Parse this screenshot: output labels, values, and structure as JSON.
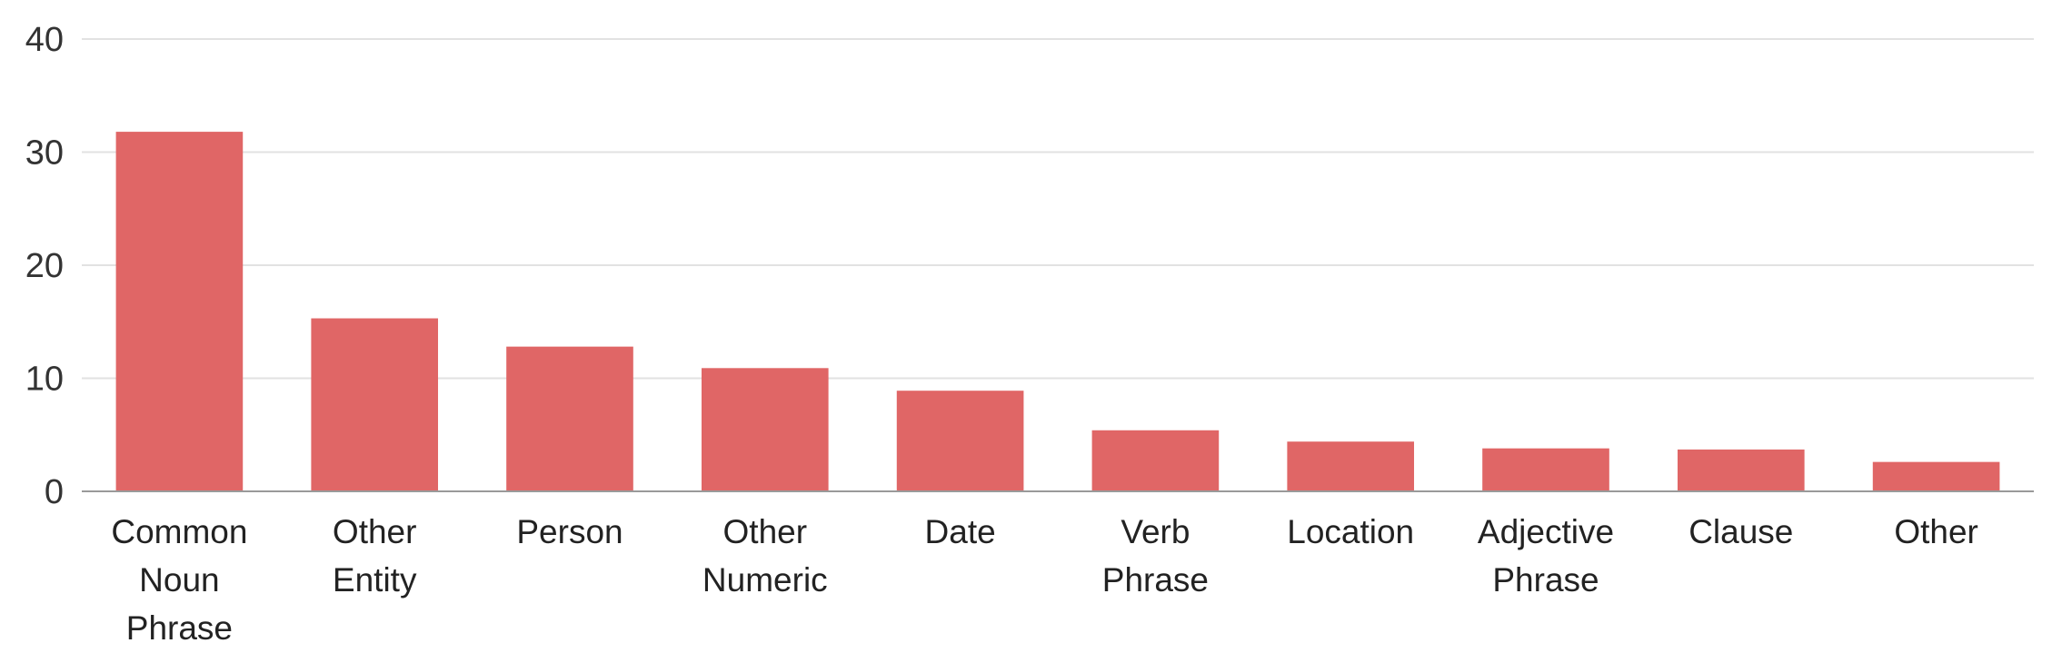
{
  "chart_data": {
    "type": "bar",
    "title": "",
    "xlabel": "",
    "ylabel": "",
    "ylim": [
      0,
      40
    ],
    "yticks": [
      0,
      10,
      20,
      30,
      40
    ],
    "grid": true,
    "bar_color": "#e06666",
    "categories": [
      [
        "Common",
        "Noun",
        "Phrase"
      ],
      [
        "Other",
        "Entity"
      ],
      [
        "Person"
      ],
      [
        "Other",
        "Numeric"
      ],
      [
        "Date"
      ],
      [
        "Verb",
        "Phrase"
      ],
      [
        "Location"
      ],
      [
        "Adjective",
        "Phrase"
      ],
      [
        "Clause"
      ],
      [
        "Other"
      ]
    ],
    "values": [
      31.8,
      15.3,
      12.8,
      10.9,
      8.9,
      5.4,
      4.4,
      3.8,
      3.7,
      2.6
    ]
  }
}
